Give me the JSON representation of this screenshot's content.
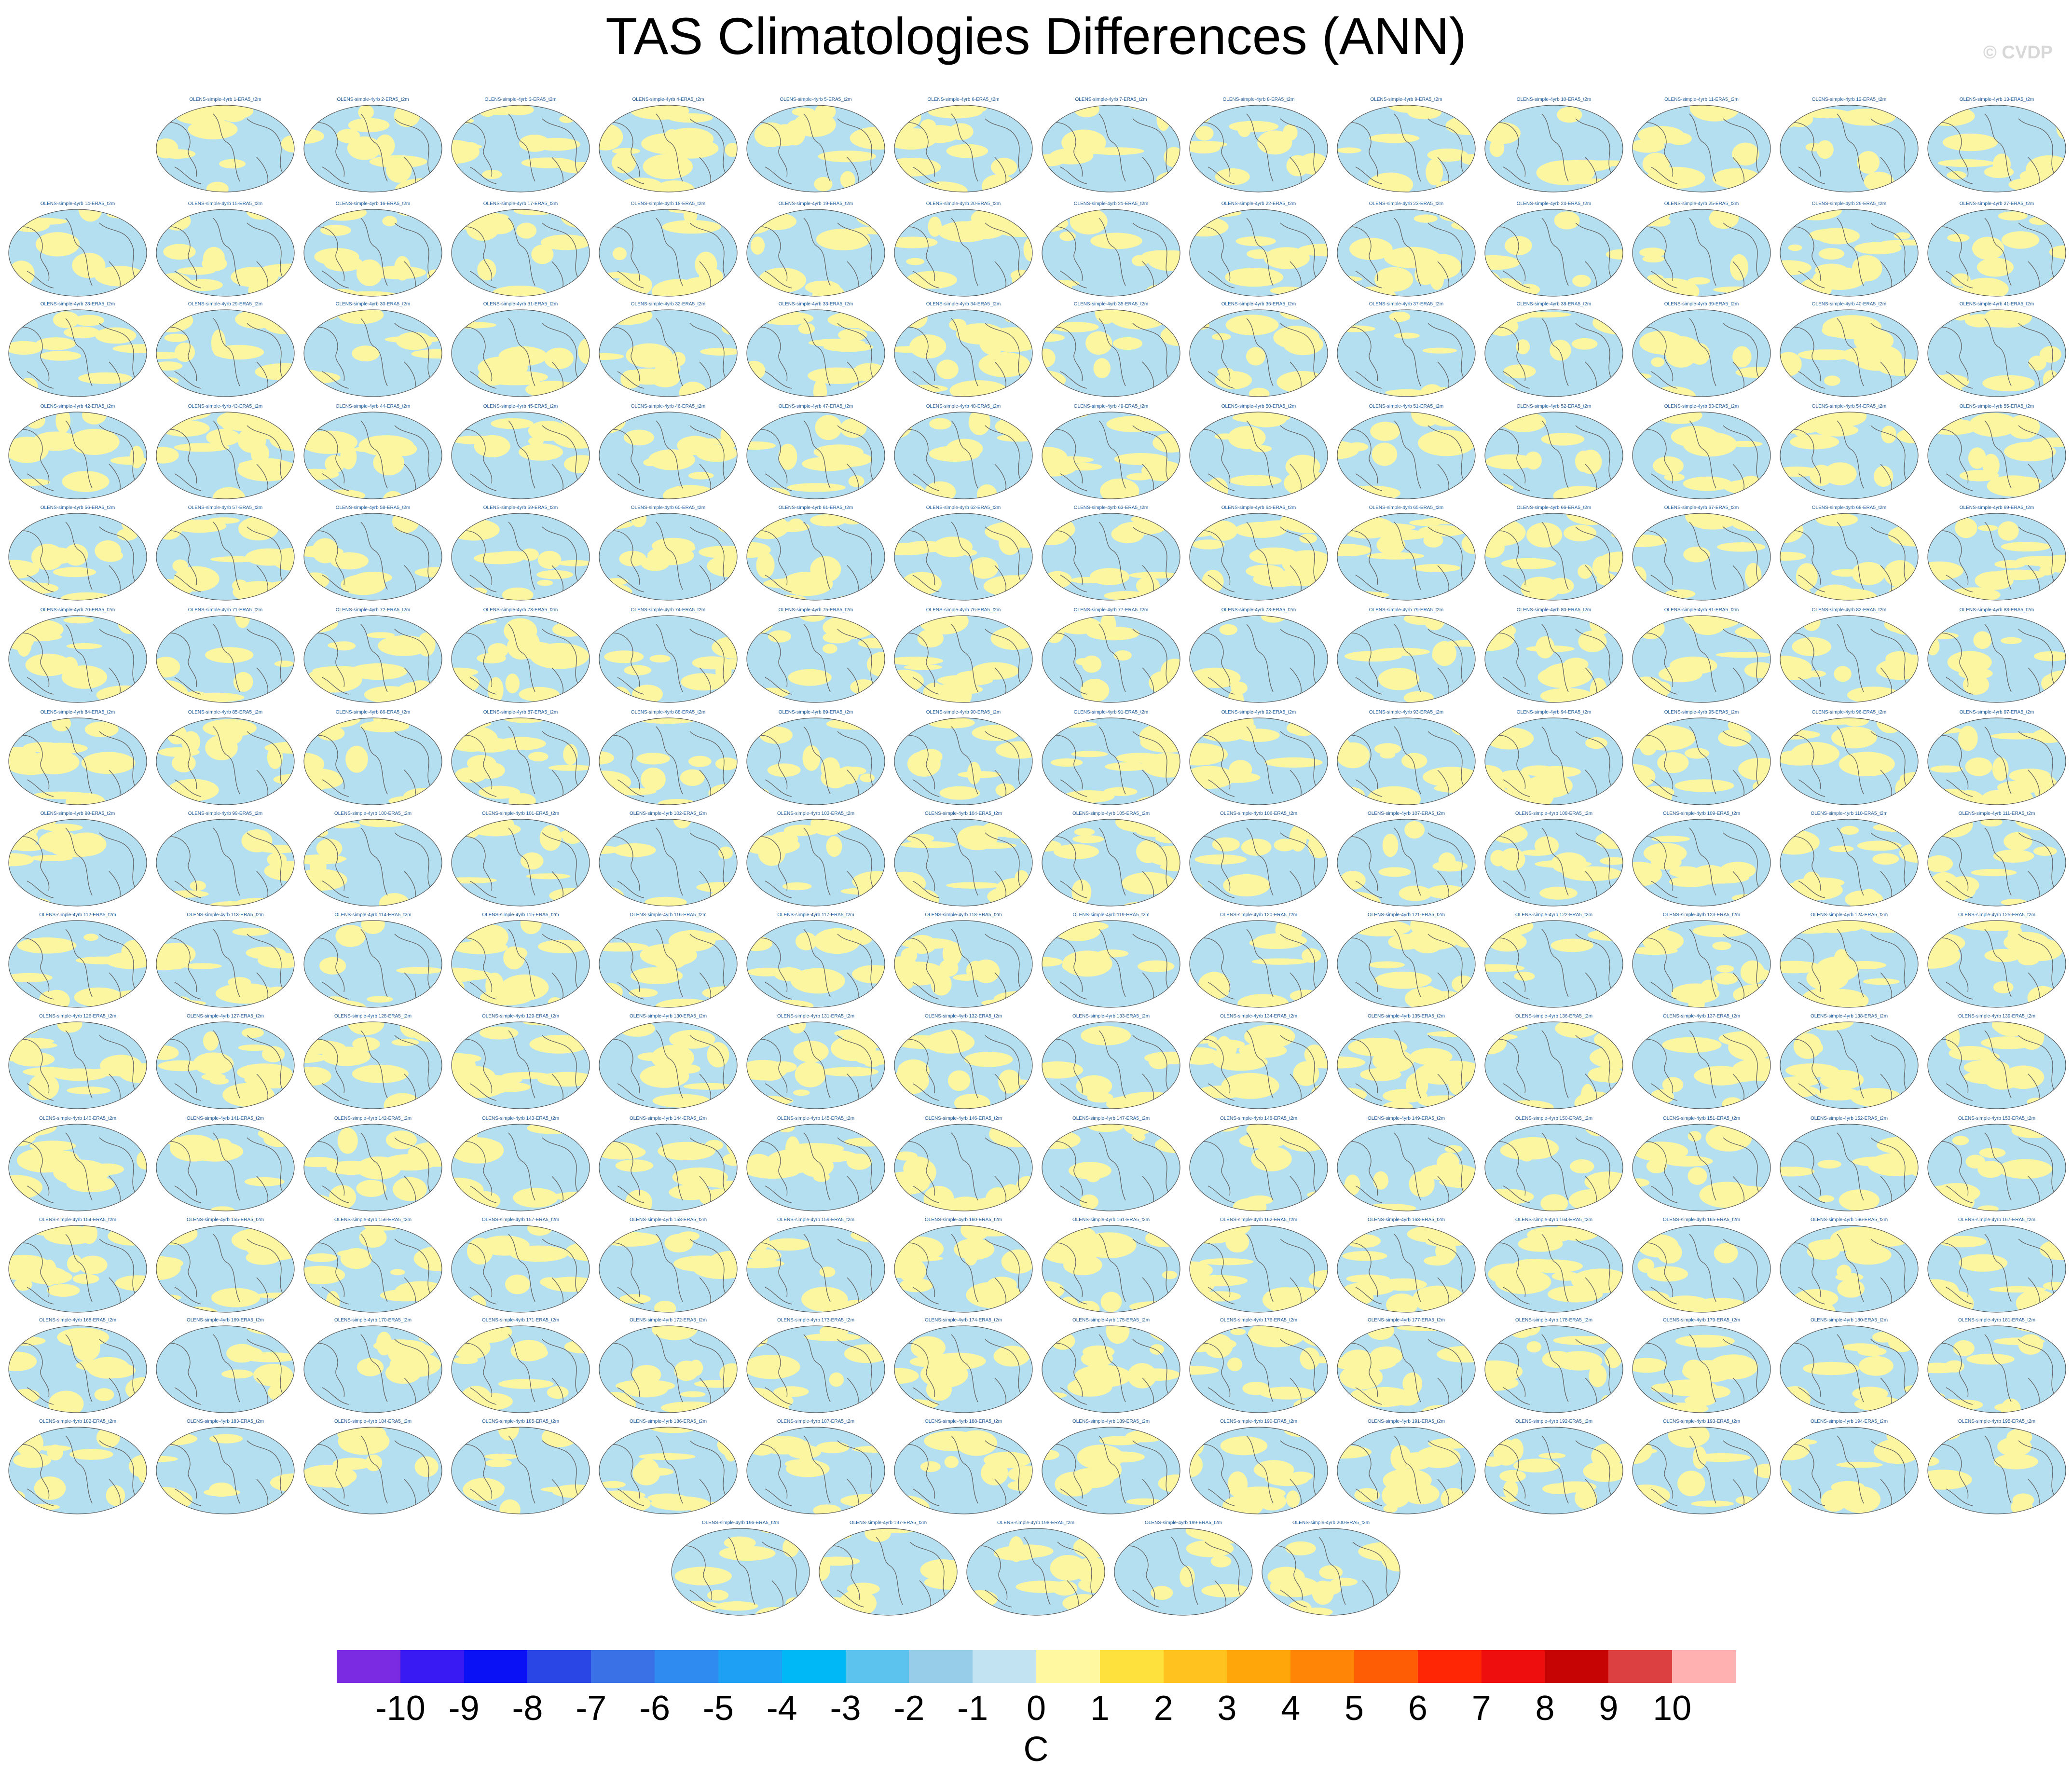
{
  "title": "TAS Climatologies Differences (ANN)",
  "watermark": "© CVDP",
  "panel_label_prefix": "OLENS-simple-4yrb ",
  "panel_label_suffix": "-ERA5_t2m",
  "panel_count": 200,
  "colors": {
    "ocean_blue": "#b4dff0",
    "land_yellow": "#fdf6a0",
    "coast": "#666666",
    "label_blue": "#1d5a9a"
  },
  "colorbar": {
    "colors": [
      "#7b2be2",
      "#3a1af2",
      "#0a11f5",
      "#2a47e6",
      "#3a71e6",
      "#2f8bef",
      "#1ea1f5",
      "#00b8f5",
      "#5cc3ee",
      "#98cde9",
      "#c2e3f2",
      "#fff8a0",
      "#ffe13e",
      "#ffc21f",
      "#ffa60a",
      "#ff8506",
      "#ff5d05",
      "#ff2606",
      "#ee0e0e",
      "#c60404",
      "#dd4040",
      "#ffb0b0"
    ],
    "tick_labels": [
      "-10",
      "-9",
      "-8",
      "-7",
      "-6",
      "-5",
      "-4",
      "-3",
      "-2",
      "-1",
      "0",
      "1",
      "2",
      "3",
      "4",
      "5",
      "6",
      "7",
      "8",
      "9",
      "10"
    ],
    "units": "C"
  }
}
